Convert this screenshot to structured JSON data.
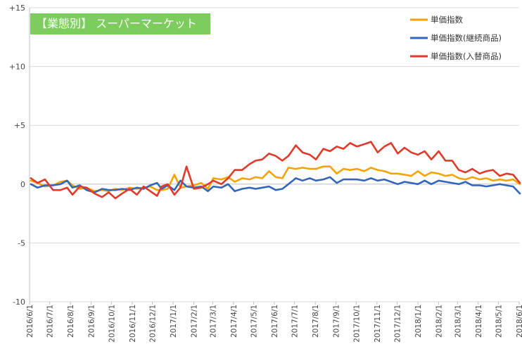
{
  "chart_data": {
    "type": "line",
    "title": "【業態別】 スーパーマーケット",
    "xlabel": "",
    "ylabel": "",
    "ylim": [
      -10,
      15
    ],
    "y_ticks": [
      {
        "value": 15,
        "label": "+15"
      },
      {
        "value": 10,
        "label": "+10"
      },
      {
        "value": 5,
        "label": "+5"
      },
      {
        "value": 0,
        "label": "0"
      },
      {
        "value": -5,
        "label": "-5"
      },
      {
        "value": -10,
        "label": "-10"
      }
    ],
    "x_tick_labels": [
      "2016/6/1",
      "2016/7/1",
      "2016/8/1",
      "2016/9/1",
      "2016/10/1",
      "2016/11/1",
      "2016/12/1",
      "2017/1/1",
      "2017/2/1",
      "2017/3/1",
      "2017/4/1",
      "2017/5/1",
      "2017/6/1",
      "2017/7/1",
      "2017/8/1",
      "2017/9/1",
      "2017/10/1",
      "2017/11/1",
      "2017/12/1",
      "2018/1/1",
      "2018/2/1",
      "2018/3/1",
      "2018/4/1",
      "2018/5/1",
      "2018/6/1"
    ],
    "x_range": [
      "2016-06-01",
      "2018-06-01"
    ],
    "grid": "horizontal",
    "legend_position": "top-right",
    "series": [
      {
        "name": "単価指数",
        "color": "#f5a300",
        "points": [
          [
            "2016-06-03",
            0.3
          ],
          [
            "2016-06-13",
            0.1
          ],
          [
            "2016-06-24",
            -0.2
          ],
          [
            "2016-07-06",
            -0.1
          ],
          [
            "2016-07-17",
            0.2
          ],
          [
            "2016-07-27",
            0.3
          ],
          [
            "2016-08-04",
            -0.1
          ],
          [
            "2016-08-15",
            -0.4
          ],
          [
            "2016-08-25",
            -0.3
          ],
          [
            "2016-09-06",
            -0.6
          ],
          [
            "2016-09-17",
            -0.5
          ],
          [
            "2016-09-27",
            -0.6
          ],
          [
            "2016-10-07",
            -0.4
          ],
          [
            "2016-10-17",
            -0.5
          ],
          [
            "2016-10-28",
            -0.3
          ],
          [
            "2016-11-08",
            -0.4
          ],
          [
            "2016-11-18",
            -0.3
          ],
          [
            "2016-11-28",
            -0.2
          ],
          [
            "2016-12-08",
            -0.5
          ],
          [
            "2016-12-15",
            -0.5
          ],
          [
            "2016-12-24",
            -0.4
          ],
          [
            "2017-01-03",
            0.8
          ],
          [
            "2017-01-12",
            -0.3
          ],
          [
            "2017-01-21",
            -0.2
          ],
          [
            "2017-02-01",
            -0.1
          ],
          [
            "2017-02-12",
            0.1
          ],
          [
            "2017-02-22",
            -0.4
          ],
          [
            "2017-03-02",
            0.5
          ],
          [
            "2017-03-14",
            0.4
          ],
          [
            "2017-03-24",
            0.6
          ],
          [
            "2017-04-03",
            0.2
          ],
          [
            "2017-04-14",
            0.5
          ],
          [
            "2017-04-25",
            0.4
          ],
          [
            "2017-05-04",
            0.6
          ],
          [
            "2017-05-14",
            0.5
          ],
          [
            "2017-05-24",
            1.1
          ],
          [
            "2017-06-03",
            0.6
          ],
          [
            "2017-06-13",
            0.5
          ],
          [
            "2017-06-22",
            1.4
          ],
          [
            "2017-07-03",
            1.3
          ],
          [
            "2017-07-13",
            1.4
          ],
          [
            "2017-07-24",
            1.3
          ],
          [
            "2017-08-02",
            1.3
          ],
          [
            "2017-08-13",
            1.5
          ],
          [
            "2017-08-23",
            1.5
          ],
          [
            "2017-09-02",
            0.9
          ],
          [
            "2017-09-12",
            1.3
          ],
          [
            "2017-09-22",
            1.2
          ],
          [
            "2017-10-02",
            1.3
          ],
          [
            "2017-10-13",
            1.1
          ],
          [
            "2017-10-23",
            1.4
          ],
          [
            "2017-11-02",
            1.2
          ],
          [
            "2017-11-12",
            1.1
          ],
          [
            "2017-11-22",
            0.9
          ],
          [
            "2017-12-02",
            0.9
          ],
          [
            "2017-12-12",
            0.8
          ],
          [
            "2017-12-22",
            0.7
          ],
          [
            "2018-01-01",
            1.1
          ],
          [
            "2018-01-11",
            0.7
          ],
          [
            "2018-01-21",
            1.0
          ],
          [
            "2018-02-01",
            0.9
          ],
          [
            "2018-02-11",
            0.7
          ],
          [
            "2018-02-21",
            0.8
          ],
          [
            "2018-03-03",
            0.5
          ],
          [
            "2018-03-13",
            0.4
          ],
          [
            "2018-03-23",
            0.6
          ],
          [
            "2018-04-03",
            0.4
          ],
          [
            "2018-04-13",
            0.5
          ],
          [
            "2018-04-23",
            0.3
          ],
          [
            "2018-05-03",
            0.4
          ],
          [
            "2018-05-13",
            0.3
          ],
          [
            "2018-05-23",
            0.4
          ],
          [
            "2018-06-02",
            0.0
          ]
        ]
      },
      {
        "name": "単価指数(継続商品)",
        "color": "#3366bb",
        "points": [
          [
            "2016-06-03",
            0.0
          ],
          [
            "2016-06-13",
            -0.3
          ],
          [
            "2016-06-24",
            -0.1
          ],
          [
            "2016-07-06",
            -0.1
          ],
          [
            "2016-07-17",
            0.0
          ],
          [
            "2016-07-27",
            0.3
          ],
          [
            "2016-08-04",
            -0.3
          ],
          [
            "2016-08-15",
            -0.1
          ],
          [
            "2016-08-25",
            -0.5
          ],
          [
            "2016-09-06",
            -0.7
          ],
          [
            "2016-09-17",
            -0.4
          ],
          [
            "2016-09-27",
            -0.5
          ],
          [
            "2016-10-07",
            -0.5
          ],
          [
            "2016-10-17",
            -0.4
          ],
          [
            "2016-10-28",
            -0.5
          ],
          [
            "2016-11-08",
            -0.3
          ],
          [
            "2016-11-18",
            -0.4
          ],
          [
            "2016-11-28",
            -0.1
          ],
          [
            "2016-12-08",
            0.1
          ],
          [
            "2016-12-15",
            -0.4
          ],
          [
            "2016-12-24",
            -0.1
          ],
          [
            "2017-01-03",
            -0.5
          ],
          [
            "2017-01-12",
            0.3
          ],
          [
            "2017-01-21",
            -0.2
          ],
          [
            "2017-02-01",
            -0.3
          ],
          [
            "2017-02-12",
            -0.2
          ],
          [
            "2017-02-22",
            -0.6
          ],
          [
            "2017-03-02",
            -0.2
          ],
          [
            "2017-03-14",
            -0.3
          ],
          [
            "2017-03-24",
            0.0
          ],
          [
            "2017-04-03",
            -0.6
          ],
          [
            "2017-04-14",
            -0.4
          ],
          [
            "2017-04-25",
            -0.3
          ],
          [
            "2017-05-04",
            -0.4
          ],
          [
            "2017-05-14",
            -0.3
          ],
          [
            "2017-05-24",
            -0.2
          ],
          [
            "2017-06-03",
            -0.5
          ],
          [
            "2017-06-13",
            -0.4
          ],
          [
            "2017-06-22",
            0.0
          ],
          [
            "2017-07-03",
            0.5
          ],
          [
            "2017-07-13",
            0.3
          ],
          [
            "2017-07-24",
            0.5
          ],
          [
            "2017-08-02",
            0.3
          ],
          [
            "2017-08-13",
            0.4
          ],
          [
            "2017-08-23",
            0.6
          ],
          [
            "2017-09-02",
            0.1
          ],
          [
            "2017-09-12",
            0.4
          ],
          [
            "2017-09-22",
            0.4
          ],
          [
            "2017-10-02",
            0.4
          ],
          [
            "2017-10-13",
            0.3
          ],
          [
            "2017-10-23",
            0.5
          ],
          [
            "2017-11-02",
            0.3
          ],
          [
            "2017-11-12",
            0.4
          ],
          [
            "2017-11-22",
            0.2
          ],
          [
            "2017-12-02",
            0.0
          ],
          [
            "2017-12-12",
            0.2
          ],
          [
            "2017-12-22",
            0.1
          ],
          [
            "2018-01-01",
            0.0
          ],
          [
            "2018-01-11",
            0.3
          ],
          [
            "2018-01-21",
            0.0
          ],
          [
            "2018-02-01",
            0.3
          ],
          [
            "2018-02-11",
            0.2
          ],
          [
            "2018-02-21",
            0.1
          ],
          [
            "2018-03-03",
            0.0
          ],
          [
            "2018-03-13",
            0.2
          ],
          [
            "2018-03-23",
            -0.1
          ],
          [
            "2018-04-03",
            -0.1
          ],
          [
            "2018-04-13",
            -0.2
          ],
          [
            "2018-04-23",
            -0.1
          ],
          [
            "2018-05-03",
            0.0
          ],
          [
            "2018-05-13",
            -0.1
          ],
          [
            "2018-05-23",
            -0.2
          ],
          [
            "2018-06-02",
            -0.8
          ]
        ]
      },
      {
        "name": "単価指数(入替商品)",
        "color": "#e03a2a",
        "points": [
          [
            "2016-06-03",
            0.5
          ],
          [
            "2016-06-13",
            0.1
          ],
          [
            "2016-06-24",
            0.4
          ],
          [
            "2016-07-06",
            -0.5
          ],
          [
            "2016-07-17",
            -0.5
          ],
          [
            "2016-07-27",
            -0.3
          ],
          [
            "2016-08-04",
            -0.9
          ],
          [
            "2016-08-15",
            -0.2
          ],
          [
            "2016-08-25",
            -0.3
          ],
          [
            "2016-09-06",
            -0.8
          ],
          [
            "2016-09-17",
            -1.1
          ],
          [
            "2016-09-27",
            -0.7
          ],
          [
            "2016-10-07",
            -1.2
          ],
          [
            "2016-10-17",
            -0.8
          ],
          [
            "2016-10-28",
            -0.4
          ],
          [
            "2016-11-08",
            -0.9
          ],
          [
            "2016-11-18",
            -0.2
          ],
          [
            "2016-11-28",
            -0.6
          ],
          [
            "2016-12-08",
            -1.0
          ],
          [
            "2016-12-15",
            -0.2
          ],
          [
            "2016-12-24",
            0.0
          ],
          [
            "2017-01-03",
            -0.9
          ],
          [
            "2017-01-12",
            -0.3
          ],
          [
            "2017-01-21",
            1.5
          ],
          [
            "2017-02-01",
            -0.4
          ],
          [
            "2017-02-12",
            -0.3
          ],
          [
            "2017-02-22",
            0.0
          ],
          [
            "2017-03-02",
            0.3
          ],
          [
            "2017-03-14",
            0.0
          ],
          [
            "2017-03-24",
            0.5
          ],
          [
            "2017-04-03",
            1.2
          ],
          [
            "2017-04-14",
            1.2
          ],
          [
            "2017-04-25",
            1.7
          ],
          [
            "2017-05-04",
            2.0
          ],
          [
            "2017-05-14",
            2.1
          ],
          [
            "2017-05-24",
            2.6
          ],
          [
            "2017-06-03",
            2.4
          ],
          [
            "2017-06-13",
            2.0
          ],
          [
            "2017-06-22",
            2.4
          ],
          [
            "2017-07-03",
            3.3
          ],
          [
            "2017-07-13",
            2.7
          ],
          [
            "2017-07-24",
            2.5
          ],
          [
            "2017-08-02",
            2.1
          ],
          [
            "2017-08-13",
            3.0
          ],
          [
            "2017-08-23",
            2.8
          ],
          [
            "2017-09-02",
            3.2
          ],
          [
            "2017-09-12",
            3.0
          ],
          [
            "2017-09-22",
            3.5
          ],
          [
            "2017-10-02",
            3.2
          ],
          [
            "2017-10-13",
            3.4
          ],
          [
            "2017-10-23",
            3.6
          ],
          [
            "2017-11-02",
            2.7
          ],
          [
            "2017-11-12",
            3.2
          ],
          [
            "2017-11-22",
            3.5
          ],
          [
            "2017-12-02",
            2.6
          ],
          [
            "2017-12-12",
            3.1
          ],
          [
            "2017-12-22",
            2.7
          ],
          [
            "2018-01-01",
            2.5
          ],
          [
            "2018-01-11",
            2.8
          ],
          [
            "2018-01-21",
            2.1
          ],
          [
            "2018-02-01",
            2.8
          ],
          [
            "2018-02-11",
            2.0
          ],
          [
            "2018-02-21",
            2.0
          ],
          [
            "2018-03-03",
            1.2
          ],
          [
            "2018-03-13",
            1.0
          ],
          [
            "2018-03-23",
            1.3
          ],
          [
            "2018-04-03",
            0.9
          ],
          [
            "2018-04-13",
            1.1
          ],
          [
            "2018-04-23",
            1.2
          ],
          [
            "2018-05-03",
            0.7
          ],
          [
            "2018-05-13",
            0.9
          ],
          [
            "2018-05-23",
            0.8
          ],
          [
            "2018-06-02",
            0.1
          ]
        ]
      }
    ]
  }
}
